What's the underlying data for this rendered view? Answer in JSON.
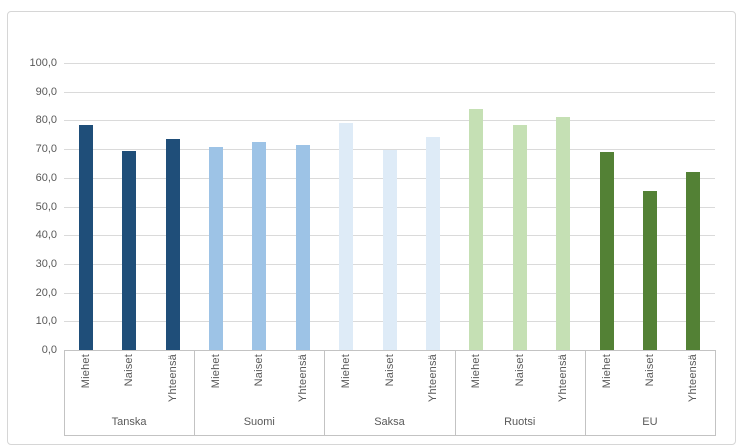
{
  "chart_data": {
    "type": "bar",
    "title": "",
    "subcategories": [
      "Miehet",
      "Naiset",
      "Yhteensä"
    ],
    "categories": [
      "Tanska",
      "Suomi",
      "Saksa",
      "Ruotsi",
      "EU"
    ],
    "groups": [
      {
        "label": "Tanska",
        "color": "#1F4E79",
        "values": [
          78.3,
          69.2,
          73.5
        ]
      },
      {
        "label": "Suomi",
        "color": "#9DC3E6",
        "values": [
          70.6,
          72.3,
          71.4
        ]
      },
      {
        "label": "Saksa",
        "color": "#DEEBF7",
        "values": [
          79.0,
          69.6,
          74.3
        ]
      },
      {
        "label": "Ruotsi",
        "color": "#C5E0B4",
        "values": [
          83.8,
          78.5,
          81.1
        ]
      },
      {
        "label": "EU",
        "color": "#538135",
        "values": [
          69.0,
          55.3,
          62.1
        ]
      }
    ],
    "y_axis": {
      "min": 0,
      "max": 100,
      "step": 10,
      "tick_labels": [
        "100,0",
        "90,0",
        "80,0",
        "70,0",
        "60,0",
        "50,0",
        "40,0",
        "30,0",
        "20,0",
        "10,0",
        "0,0"
      ],
      "decimal_separator": ","
    },
    "xlabel": "",
    "ylabel": "",
    "grid": true,
    "legend": false,
    "colors": {
      "background": "#FFFFFF",
      "frame_border": "#D6D6D6",
      "gridline": "#DADADA",
      "axis_line": "#C3C3C3",
      "label_text": "#595959"
    }
  }
}
